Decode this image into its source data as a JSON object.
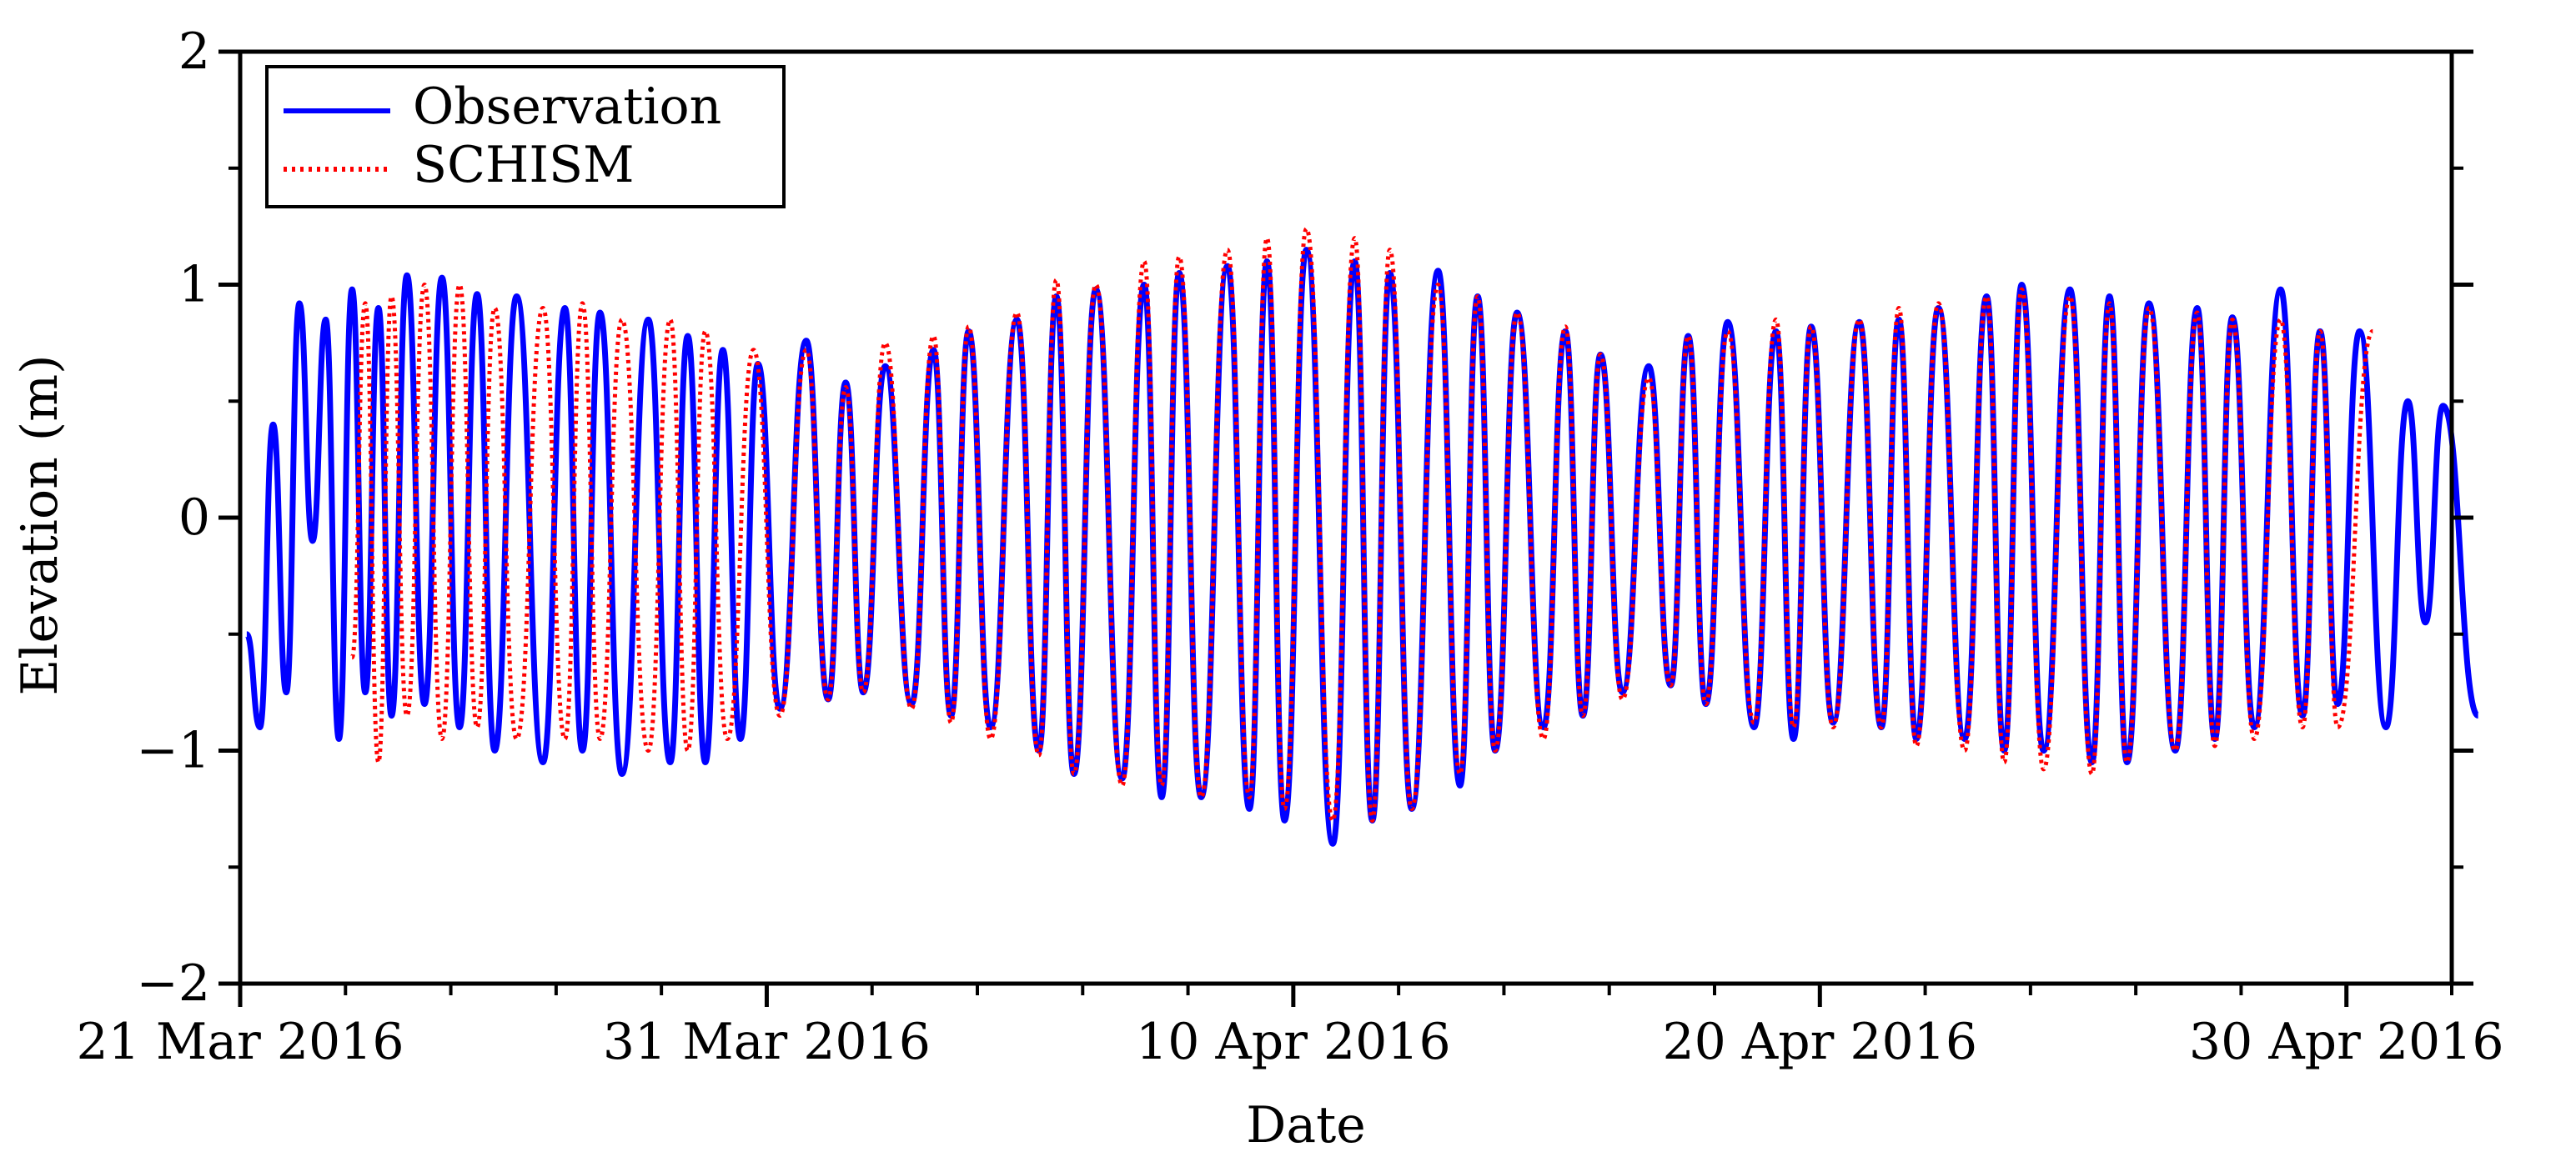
{
  "chart_data": {
    "type": "line",
    "xlabel": "Date",
    "ylabel": "Elevation (m)",
    "x_range": [
      "2016-03-21",
      "2016-05-02"
    ],
    "ylim": [
      -2,
      2
    ],
    "y_ticks": [
      {
        "value": 2,
        "label": "2"
      },
      {
        "value": 1,
        "label": "1"
      },
      {
        "value": 0,
        "label": "0"
      },
      {
        "value": -1,
        "label": "−1"
      },
      {
        "value": -2,
        "label": "−2"
      }
    ],
    "x_major_ticks": [
      {
        "date": "2016-03-21",
        "label": "21 Mar 2016"
      },
      {
        "date": "2016-03-31",
        "label": "31 Mar 2016"
      },
      {
        "date": "2016-04-10",
        "label": "10 Apr 2016"
      },
      {
        "date": "2016-04-20",
        "label": "20 Apr 2016"
      },
      {
        "date": "2016-04-30",
        "label": "30 Apr 2016"
      }
    ],
    "x_minor_tick_interval_days": 2,
    "grid": false,
    "legend_position": "top-left",
    "series": [
      {
        "name": "Observation",
        "color": "#0000ff",
        "style": "solid",
        "sampling": "semi-diurnal peaks and troughs",
        "points": [
          [
            "2016-03-21",
            -0.5
          ],
          [
            "2016-03-21",
            -0.9
          ],
          [
            "2016-03-21",
            0.4
          ],
          [
            "2016-03-21",
            -0.75
          ],
          [
            "2016-03-22",
            0.92
          ],
          [
            "2016-03-22",
            -0.1
          ],
          [
            "2016-03-22",
            0.85
          ],
          [
            "2016-03-22",
            -0.95
          ],
          [
            "2016-03-23",
            0.98
          ],
          [
            "2016-03-23",
            -0.75
          ],
          [
            "2016-03-23",
            0.9
          ],
          [
            "2016-03-23",
            -0.85
          ],
          [
            "2016-03-24",
            1.04
          ],
          [
            "2016-03-24",
            -0.8
          ],
          [
            "2016-03-24",
            1.03
          ],
          [
            "2016-03-25",
            -0.9
          ],
          [
            "2016-03-25",
            0.96
          ],
          [
            "2016-03-25",
            -1.0
          ],
          [
            "2016-03-26",
            0.95
          ],
          [
            "2016-03-26",
            -1.05
          ],
          [
            "2016-03-27",
            0.9
          ],
          [
            "2016-03-27",
            -1.0
          ],
          [
            "2016-03-27",
            0.88
          ],
          [
            "2016-03-28",
            -1.1
          ],
          [
            "2016-03-28",
            0.85
          ],
          [
            "2016-03-29",
            -1.05
          ],
          [
            "2016-03-29",
            0.78
          ],
          [
            "2016-03-29",
            -1.05
          ],
          [
            "2016-03-30",
            0.72
          ],
          [
            "2016-03-30",
            -0.95
          ],
          [
            "2016-03-30",
            0.66
          ],
          [
            "2016-03-31",
            -0.82
          ],
          [
            "2016-03-31",
            0.76
          ],
          [
            "2016-04-01",
            -0.78
          ],
          [
            "2016-04-01",
            0.58
          ],
          [
            "2016-04-01",
            -0.75
          ],
          [
            "2016-04-02",
            0.65
          ],
          [
            "2016-04-02",
            -0.8
          ],
          [
            "2016-04-03",
            0.72
          ],
          [
            "2016-04-03",
            -0.85
          ],
          [
            "2016-04-03",
            0.8
          ],
          [
            "2016-04-04",
            -0.9
          ],
          [
            "2016-04-04",
            0.85
          ],
          [
            "2016-04-05",
            -1.0
          ],
          [
            "2016-04-05",
            0.95
          ],
          [
            "2016-04-05",
            -1.1
          ],
          [
            "2016-04-06",
            0.98
          ],
          [
            "2016-04-06",
            -1.12
          ],
          [
            "2016-04-07",
            1.0
          ],
          [
            "2016-04-07",
            -1.2
          ],
          [
            "2016-04-07",
            1.05
          ],
          [
            "2016-04-08",
            -1.2
          ],
          [
            "2016-04-08",
            1.08
          ],
          [
            "2016-04-09",
            -1.25
          ],
          [
            "2016-04-09",
            1.1
          ],
          [
            "2016-04-09",
            -1.3
          ],
          [
            "2016-04-10",
            1.15
          ],
          [
            "2016-04-10",
            -1.4
          ],
          [
            "2016-04-11",
            1.1
          ],
          [
            "2016-04-11",
            -1.3
          ],
          [
            "2016-04-11",
            1.05
          ],
          [
            "2016-04-12",
            -1.25
          ],
          [
            "2016-04-12",
            1.06
          ],
          [
            "2016-04-13",
            -1.15
          ],
          [
            "2016-04-13",
            0.95
          ],
          [
            "2016-04-13",
            -1.0
          ],
          [
            "2016-04-14",
            0.88
          ],
          [
            "2016-04-14",
            -0.9
          ],
          [
            "2016-04-15",
            0.8
          ],
          [
            "2016-04-15",
            -0.85
          ],
          [
            "2016-04-15",
            0.7
          ],
          [
            "2016-04-16",
            -0.75
          ],
          [
            "2016-04-16",
            0.65
          ],
          [
            "2016-04-17",
            -0.72
          ],
          [
            "2016-04-17",
            0.78
          ],
          [
            "2016-04-17",
            -0.8
          ],
          [
            "2016-04-18",
            0.84
          ],
          [
            "2016-04-18",
            -0.9
          ],
          [
            "2016-04-19",
            0.8
          ],
          [
            "2016-04-19",
            -0.95
          ],
          [
            "2016-04-19",
            0.82
          ],
          [
            "2016-04-20",
            -0.88
          ],
          [
            "2016-04-20",
            0.84
          ],
          [
            "2016-04-21",
            -0.9
          ],
          [
            "2016-04-21",
            0.85
          ],
          [
            "2016-04-21",
            -0.95
          ],
          [
            "2016-04-22",
            0.9
          ],
          [
            "2016-04-22",
            -0.95
          ],
          [
            "2016-04-23",
            0.95
          ],
          [
            "2016-04-23",
            -1.0
          ],
          [
            "2016-04-23",
            1.0
          ],
          [
            "2016-04-24",
            -1.0
          ],
          [
            "2016-04-24",
            0.98
          ],
          [
            "2016-04-25",
            -1.05
          ],
          [
            "2016-04-25",
            0.95
          ],
          [
            "2016-04-25",
            -1.05
          ],
          [
            "2016-04-26",
            0.92
          ],
          [
            "2016-04-26",
            -1.0
          ],
          [
            "2016-04-27",
            0.9
          ],
          [
            "2016-04-27",
            -0.95
          ],
          [
            "2016-04-27",
            0.86
          ],
          [
            "2016-04-28",
            -0.9
          ],
          [
            "2016-04-28",
            0.98
          ],
          [
            "2016-04-29",
            -0.85
          ],
          [
            "2016-04-29",
            0.8
          ],
          [
            "2016-04-29",
            -0.8
          ],
          [
            "2016-04-30",
            0.8
          ],
          [
            "2016-04-30",
            -0.9
          ],
          [
            "2016-05-01",
            0.5
          ],
          [
            "2016-05-01",
            -0.45
          ],
          [
            "2016-05-01",
            0.48
          ],
          [
            "2016-05-02",
            -0.85
          ]
        ]
      },
      {
        "name": "SCHISM",
        "color": "#ff0000",
        "style": "dotted",
        "sampling": "semi-diurnal peaks and troughs",
        "points": [
          [
            "2016-03-23",
            -0.6
          ],
          [
            "2016-03-23",
            0.92
          ],
          [
            "2016-03-23",
            -1.05
          ],
          [
            "2016-03-23",
            0.95
          ],
          [
            "2016-03-24",
            -0.85
          ],
          [
            "2016-03-24",
            1.0
          ],
          [
            "2016-03-24",
            -0.95
          ],
          [
            "2016-03-25",
            1.0
          ],
          [
            "2016-03-25",
            -0.9
          ],
          [
            "2016-03-25",
            0.9
          ],
          [
            "2016-03-26",
            -0.95
          ],
          [
            "2016-03-26",
            0.9
          ],
          [
            "2016-03-27",
            -0.95
          ],
          [
            "2016-03-27",
            0.92
          ],
          [
            "2016-03-27",
            -0.95
          ],
          [
            "2016-03-28",
            0.85
          ],
          [
            "2016-03-28",
            -1.0
          ],
          [
            "2016-03-29",
            0.85
          ],
          [
            "2016-03-29",
            -1.0
          ],
          [
            "2016-03-29",
            0.8
          ],
          [
            "2016-03-30",
            -0.95
          ],
          [
            "2016-03-30",
            0.72
          ],
          [
            "2016-03-31",
            -0.85
          ],
          [
            "2016-03-31",
            0.72
          ],
          [
            "2016-04-01",
            -0.78
          ],
          [
            "2016-04-01",
            0.56
          ],
          [
            "2016-04-01",
            -0.75
          ],
          [
            "2016-04-02",
            0.75
          ],
          [
            "2016-04-02",
            -0.82
          ],
          [
            "2016-04-03",
            0.78
          ],
          [
            "2016-04-03",
            -0.88
          ],
          [
            "2016-04-03",
            0.82
          ],
          [
            "2016-04-04",
            -0.95
          ],
          [
            "2016-04-04",
            0.88
          ],
          [
            "2016-04-05",
            -1.02
          ],
          [
            "2016-04-05",
            1.02
          ],
          [
            "2016-04-05",
            -1.1
          ],
          [
            "2016-04-06",
            1.0
          ],
          [
            "2016-04-06",
            -1.15
          ],
          [
            "2016-04-07",
            1.1
          ],
          [
            "2016-04-07",
            -1.15
          ],
          [
            "2016-04-07",
            1.12
          ],
          [
            "2016-04-08",
            -1.2
          ],
          [
            "2016-04-08",
            1.15
          ],
          [
            "2016-04-09",
            -1.2
          ],
          [
            "2016-04-09",
            1.2
          ],
          [
            "2016-04-09",
            -1.25
          ],
          [
            "2016-04-10",
            1.24
          ],
          [
            "2016-04-10",
            -1.3
          ],
          [
            "2016-04-11",
            1.2
          ],
          [
            "2016-04-11",
            -1.3
          ],
          [
            "2016-04-11",
            1.15
          ],
          [
            "2016-04-12",
            -1.25
          ],
          [
            "2016-04-12",
            1.0
          ],
          [
            "2016-04-13",
            -1.1
          ],
          [
            "2016-04-13",
            0.95
          ],
          [
            "2016-04-13",
            -1.0
          ],
          [
            "2016-04-14",
            0.88
          ],
          [
            "2016-04-14",
            -0.95
          ],
          [
            "2016-04-15",
            0.82
          ],
          [
            "2016-04-15",
            -0.85
          ],
          [
            "2016-04-15",
            0.7
          ],
          [
            "2016-04-16",
            -0.78
          ],
          [
            "2016-04-16",
            0.6
          ],
          [
            "2016-04-17",
            -0.72
          ],
          [
            "2016-04-17",
            0.78
          ],
          [
            "2016-04-17",
            -0.8
          ],
          [
            "2016-04-18",
            0.8
          ],
          [
            "2016-04-18",
            -0.88
          ],
          [
            "2016-04-19",
            0.85
          ],
          [
            "2016-04-19",
            -0.9
          ],
          [
            "2016-04-19",
            0.82
          ],
          [
            "2016-04-20",
            -0.9
          ],
          [
            "2016-04-20",
            0.85
          ],
          [
            "2016-04-21",
            -0.9
          ],
          [
            "2016-04-21",
            0.9
          ],
          [
            "2016-04-21",
            -0.98
          ],
          [
            "2016-04-22",
            0.92
          ],
          [
            "2016-04-22",
            -1.0
          ],
          [
            "2016-04-23",
            0.95
          ],
          [
            "2016-04-23",
            -1.05
          ],
          [
            "2016-04-23",
            0.98
          ],
          [
            "2016-04-24",
            -1.08
          ],
          [
            "2016-04-24",
            0.95
          ],
          [
            "2016-04-25",
            -1.1
          ],
          [
            "2016-04-25",
            0.92
          ],
          [
            "2016-04-25",
            -1.05
          ],
          [
            "2016-04-26",
            0.9
          ],
          [
            "2016-04-26",
            -1.0
          ],
          [
            "2016-04-27",
            0.88
          ],
          [
            "2016-04-27",
            -0.98
          ],
          [
            "2016-04-27",
            0.85
          ],
          [
            "2016-04-28",
            -0.95
          ],
          [
            "2016-04-28",
            0.85
          ],
          [
            "2016-04-29",
            -0.9
          ],
          [
            "2016-04-29",
            0.8
          ],
          [
            "2016-04-29",
            -0.9
          ],
          [
            "2016-04-30",
            0.8
          ]
        ]
      }
    ]
  }
}
